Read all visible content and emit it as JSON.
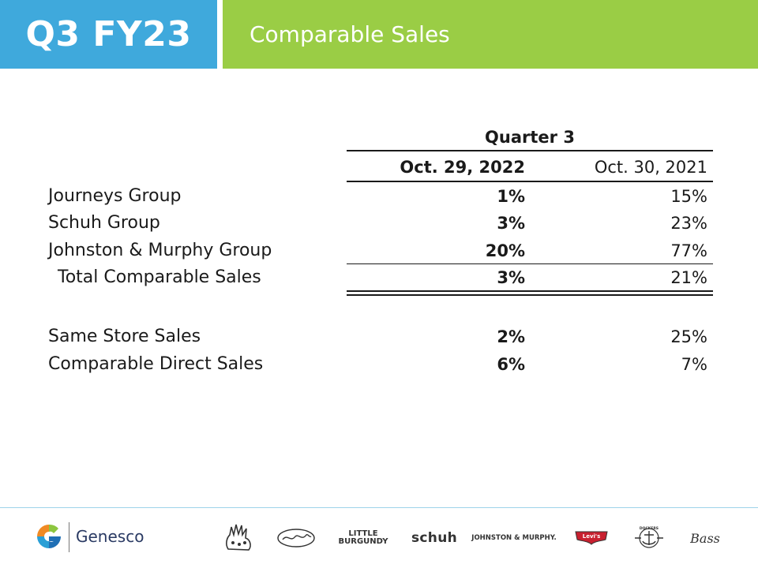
{
  "header": {
    "period": "Q3 FY23",
    "title": "Comparable Sales"
  },
  "table": {
    "group_header": "Quarter 3",
    "columns": [
      "Oct. 29, 2022",
      "Oct. 30, 2021"
    ],
    "rows": [
      {
        "label": "Journeys Group",
        "current": "1%",
        "prior": "15%"
      },
      {
        "label": "Schuh Group",
        "current": "3%",
        "prior": "23%"
      },
      {
        "label": "Johnston & Murphy Group",
        "current": "20%",
        "prior": "77%"
      },
      {
        "label": "Total Comparable Sales",
        "current": "3%",
        "prior": "21%"
      },
      {
        "label": "Same Store Sales",
        "current": "2%",
        "prior": "25%"
      },
      {
        "label": "Comparable Direct Sales",
        "current": "6%",
        "prior": "7%"
      }
    ]
  },
  "footer": {
    "company": "Genesco",
    "brands": {
      "little_burgundy_line1": "LITTLE",
      "little_burgundy_line2": "BURGUNDY",
      "schuh": "schuh",
      "johnston_murphy": "JOHNSTON & MURPHY.",
      "levis": "Levi's",
      "dockers": "DOCKERS",
      "bass": "Bass"
    },
    "colors": {
      "header_blue": "#3fa9dc",
      "header_green": "#9acd45",
      "brand_navy": "#2a3a63",
      "levis_red": "#c8202f"
    }
  }
}
